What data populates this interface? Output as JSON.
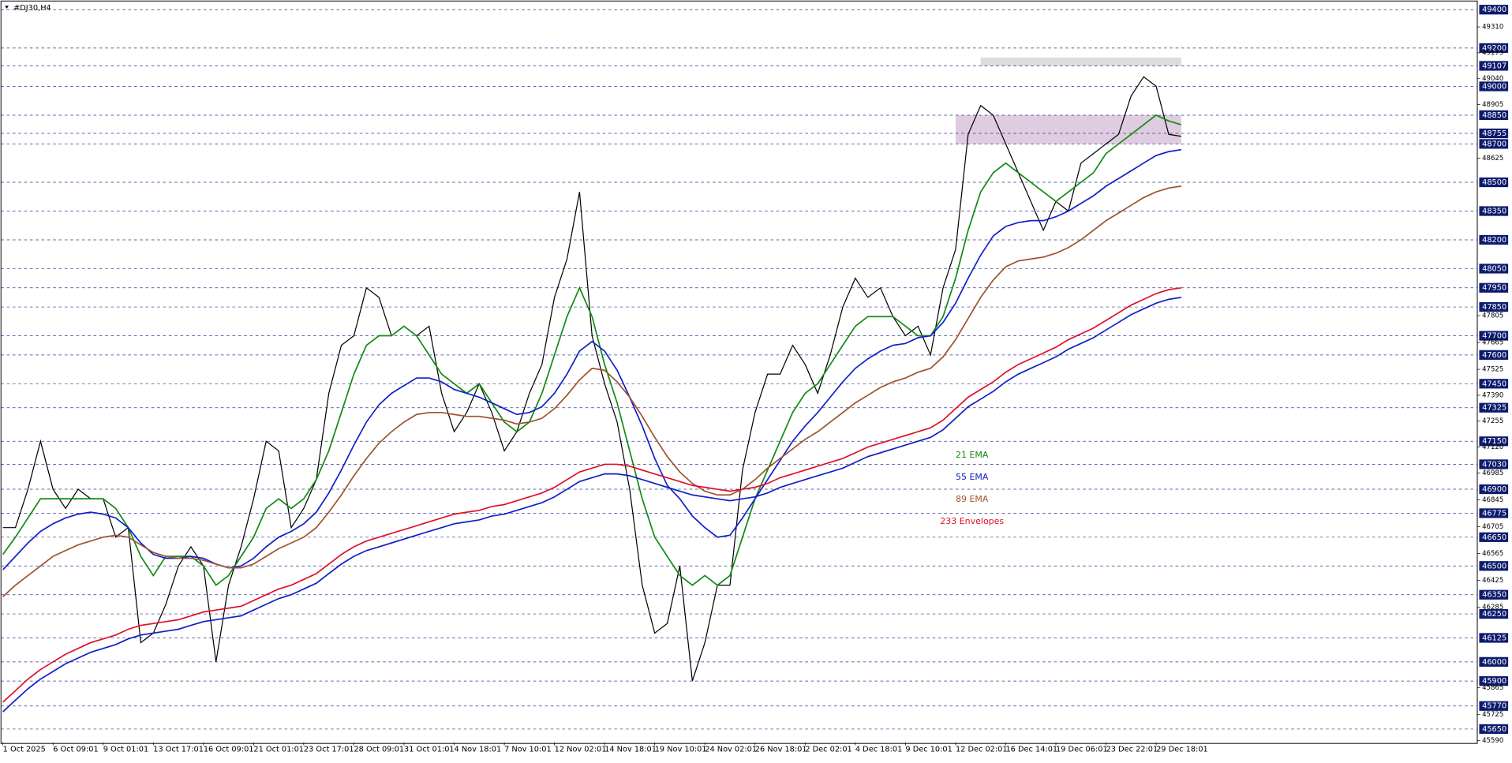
{
  "chart_data": {
    "type": "line",
    "title": "#DJ30,H4",
    "categories": [
      "1 Oct 2025",
      null,
      null,
      null,
      "6 Oct 09:01",
      null,
      null,
      null,
      "9 Oct 01:01",
      null,
      null,
      null,
      "13 Oct 17:01",
      null,
      null,
      null,
      "16 Oct 09:01",
      null,
      null,
      null,
      "21 Oct 01:01",
      null,
      null,
      null,
      "23 Oct 17:01",
      null,
      null,
      null,
      "28 Oct 09:01",
      null,
      null,
      null,
      "31 Oct 01:01",
      null,
      null,
      null,
      "4 Nov 18:01",
      null,
      null,
      null,
      "7 Nov 10:01",
      null,
      null,
      null,
      "12 Nov 02:01",
      null,
      null,
      null,
      "14 Nov 18:01",
      null,
      null,
      null,
      "19 Nov 10:01",
      null,
      null,
      null,
      "24 Nov 02:01",
      null,
      null,
      null,
      "26 Nov 18:01",
      null,
      null,
      null,
      "2 Dec 02:01",
      null,
      null,
      null,
      "4 Dec 18:01",
      null,
      null,
      null,
      "9 Dec 10:01",
      null,
      null,
      null,
      "12 Dec 02:01",
      null,
      null,
      null,
      "16 Dec 14:01",
      null,
      null,
      null,
      "19 Dec 06:01",
      null,
      null,
      null,
      "23 Dec 22:01",
      null,
      null,
      null,
      "29 Dec 18:01",
      null,
      null,
      null
    ],
    "series": [
      {
        "color": "#000000",
        "values": [
          46700,
          46700,
          46900,
          47150,
          46900,
          46800,
          46900,
          46850,
          46850,
          46650,
          46700,
          46100,
          46150,
          46300,
          46500,
          46600,
          46500,
          46000,
          46400,
          46600,
          46850,
          47150,
          47100,
          46700,
          46800,
          46950,
          47400,
          47650,
          47700,
          47950,
          47900,
          47700,
          47750,
          47700,
          47750,
          47400,
          47200,
          47300,
          47450,
          47300,
          47100,
          47200,
          47400,
          47550,
          47900,
          48100,
          48450,
          47700,
          47450,
          47250,
          46900,
          46400,
          46150,
          46200,
          46500,
          45900,
          46100,
          46400,
          46400,
          47000,
          47300,
          47500,
          47500,
          47650,
          47550,
          47400,
          47600,
          47850,
          48000,
          47900,
          47950,
          47800,
          47700,
          47750,
          47600,
          47950,
          48150,
          48750,
          48900,
          48850,
          48700,
          48550,
          48400,
          48250,
          48400,
          48350,
          48600,
          48650,
          48700,
          48750,
          48950,
          49050,
          49000,
          48750,
          48740,
          null
        ]
      },
      {
        "name": "21 EMA",
        "color": "#138a13",
        "values": [
          46560,
          46650,
          46750,
          46850,
          46850,
          46850,
          46850,
          46850,
          46850,
          46800,
          46700,
          46550,
          46450,
          46550,
          46550,
          46550,
          46500,
          46400,
          46450,
          46550,
          46650,
          46800,
          46850,
          46800,
          46850,
          46950,
          47100,
          47300,
          47500,
          47650,
          47700,
          47700,
          47750,
          47700,
          47600,
          47500,
          47450,
          47400,
          47450,
          47350,
          47250,
          47200,
          47250,
          47400,
          47600,
          47800,
          47950,
          47800,
          47550,
          47350,
          47100,
          46850,
          46650,
          46550,
          46450,
          46400,
          46450,
          46400,
          46450,
          46650,
          46850,
          47000,
          47150,
          47300,
          47400,
          47450,
          47550,
          47650,
          47750,
          47800,
          47800,
          47800,
          47750,
          47700,
          47700,
          47800,
          48000,
          48250,
          48450,
          48550,
          48600,
          48550,
          48500,
          48450,
          48400,
          48450,
          48500,
          48550,
          48650,
          48700,
          48750,
          48800,
          48850,
          48820,
          48800,
          null
        ]
      },
      {
        "name": "55 EMA",
        "color": "#1020c8",
        "values": [
          46480,
          46550,
          46620,
          46680,
          46720,
          46750,
          46770,
          46780,
          46770,
          46750,
          46700,
          46620,
          46560,
          46540,
          46540,
          46550,
          46540,
          46510,
          46490,
          46500,
          46540,
          46600,
          46650,
          46680,
          46720,
          46780,
          46880,
          47000,
          47130,
          47250,
          47340,
          47400,
          47440,
          47480,
          47480,
          47460,
          47420,
          47400,
          47380,
          47350,
          47320,
          47290,
          47300,
          47330,
          47400,
          47500,
          47620,
          47670,
          47620,
          47520,
          47380,
          47230,
          47060,
          46920,
          46850,
          46760,
          46700,
          46650,
          46660,
          46750,
          46850,
          46950,
          47050,
          47150,
          47230,
          47300,
          47380,
          47460,
          47530,
          47580,
          47620,
          47650,
          47660,
          47690,
          47700,
          47770,
          47870,
          48000,
          48120,
          48220,
          48270,
          48290,
          48300,
          48300,
          48320,
          48350,
          48390,
          48430,
          48480,
          48520,
          48560,
          48600,
          48640,
          48660,
          48670,
          null
        ]
      },
      {
        "name": "89 EMA",
        "color": "#a0522d",
        "values": [
          46340,
          46400,
          46450,
          46500,
          46550,
          46580,
          46610,
          46630,
          46650,
          46660,
          46650,
          46610,
          46570,
          46550,
          46540,
          46540,
          46530,
          46510,
          46490,
          46490,
          46510,
          46550,
          46590,
          46620,
          46650,
          46700,
          46780,
          46870,
          46970,
          47060,
          47140,
          47200,
          47250,
          47290,
          47300,
          47300,
          47290,
          47280,
          47280,
          47270,
          47260,
          47240,
          47250,
          47270,
          47320,
          47390,
          47470,
          47530,
          47520,
          47460,
          47380,
          47280,
          47170,
          47070,
          46990,
          46930,
          46890,
          46870,
          46870,
          46900,
          46950,
          47010,
          47060,
          47110,
          47160,
          47200,
          47250,
          47300,
          47350,
          47390,
          47430,
          47460,
          47480,
          47510,
          47530,
          47590,
          47680,
          47790,
          47900,
          47990,
          48060,
          48090,
          48100,
          48110,
          48130,
          48160,
          48200,
          48250,
          48300,
          48340,
          48380,
          48420,
          48450,
          48470,
          48480,
          null
        ]
      },
      {
        "name": "233 Envelopes",
        "color": "#e0102a",
        "values": [
          45790,
          45850,
          45910,
          45960,
          46000,
          46040,
          46070,
          46100,
          46120,
          46140,
          46170,
          46190,
          46200,
          46210,
          46220,
          46240,
          46260,
          46270,
          46280,
          46290,
          46320,
          46350,
          46380,
          46400,
          46430,
          46460,
          46510,
          46560,
          46600,
          46630,
          46650,
          46670,
          46690,
          46710,
          46730,
          46750,
          46770,
          46780,
          46790,
          46810,
          46820,
          46840,
          46860,
          46880,
          46910,
          46950,
          46990,
          47010,
          47030,
          47030,
          47020,
          47000,
          46980,
          46960,
          46940,
          46920,
          46910,
          46900,
          46890,
          46900,
          46910,
          46930,
          46960,
          46980,
          47000,
          47020,
          47040,
          47060,
          47090,
          47120,
          47140,
          47160,
          47180,
          47200,
          47220,
          47260,
          47320,
          47380,
          47420,
          47460,
          47510,
          47550,
          47580,
          47610,
          47640,
          47680,
          47710,
          47740,
          47780,
          47820,
          47860,
          47890,
          47920,
          47940,
          47950,
          null
        ]
      },
      {
        "color": "#1020c8",
        "values": [
          45740,
          45800,
          45860,
          45910,
          45950,
          45990,
          46020,
          46050,
          46070,
          46090,
          46120,
          46140,
          46150,
          46160,
          46170,
          46190,
          46210,
          46220,
          46230,
          46240,
          46270,
          46300,
          46330,
          46350,
          46380,
          46410,
          46460,
          46510,
          46550,
          46580,
          46600,
          46620,
          46640,
          46660,
          46680,
          46700,
          46720,
          46730,
          46740,
          46760,
          46770,
          46790,
          46810,
          46830,
          46860,
          46900,
          46940,
          46960,
          46980,
          46980,
          46970,
          46950,
          46930,
          46910,
          46890,
          46870,
          46860,
          46850,
          46840,
          46850,
          46860,
          46880,
          46910,
          46930,
          46950,
          46970,
          46990,
          47010,
          47040,
          47070,
          47090,
          47110,
          47130,
          47150,
          47170,
          47210,
          47270,
          47330,
          47370,
          47410,
          47460,
          47500,
          47530,
          47560,
          47590,
          47630,
          47660,
          47690,
          47730,
          47770,
          47810,
          47840,
          47870,
          47890,
          47900,
          null
        ]
      }
    ],
    "zones": [
      {
        "from": 76,
        "to": 94,
        "range": [
          48700,
          48850
        ],
        "color": "#d8bfd8"
      },
      {
        "from": 78,
        "to": 94,
        "range": [
          49107,
          49150
        ],
        "color": "#d3d3d3"
      }
    ],
    "ylim": [
      45580,
      49435
    ],
    "yticks": [
      49400,
      49200,
      49107,
      49000,
      48850,
      48755,
      48700,
      48500,
      48350,
      48200,
      48050,
      47950,
      47850,
      47700,
      47600,
      47450,
      47325,
      47150,
      47030,
      46900,
      46775,
      46650,
      46500,
      46350,
      46250,
      46125,
      46000,
      45900,
      45770,
      45650
    ],
    "minor_yticks": [
      49310,
      49175,
      49040,
      48905,
      48625,
      47805,
      47665,
      47525,
      47390,
      47255,
      47120,
      46985,
      46845,
      46705,
      46565,
      46425,
      46285,
      45865,
      45725,
      45590
    ],
    "grid": true
  }
}
